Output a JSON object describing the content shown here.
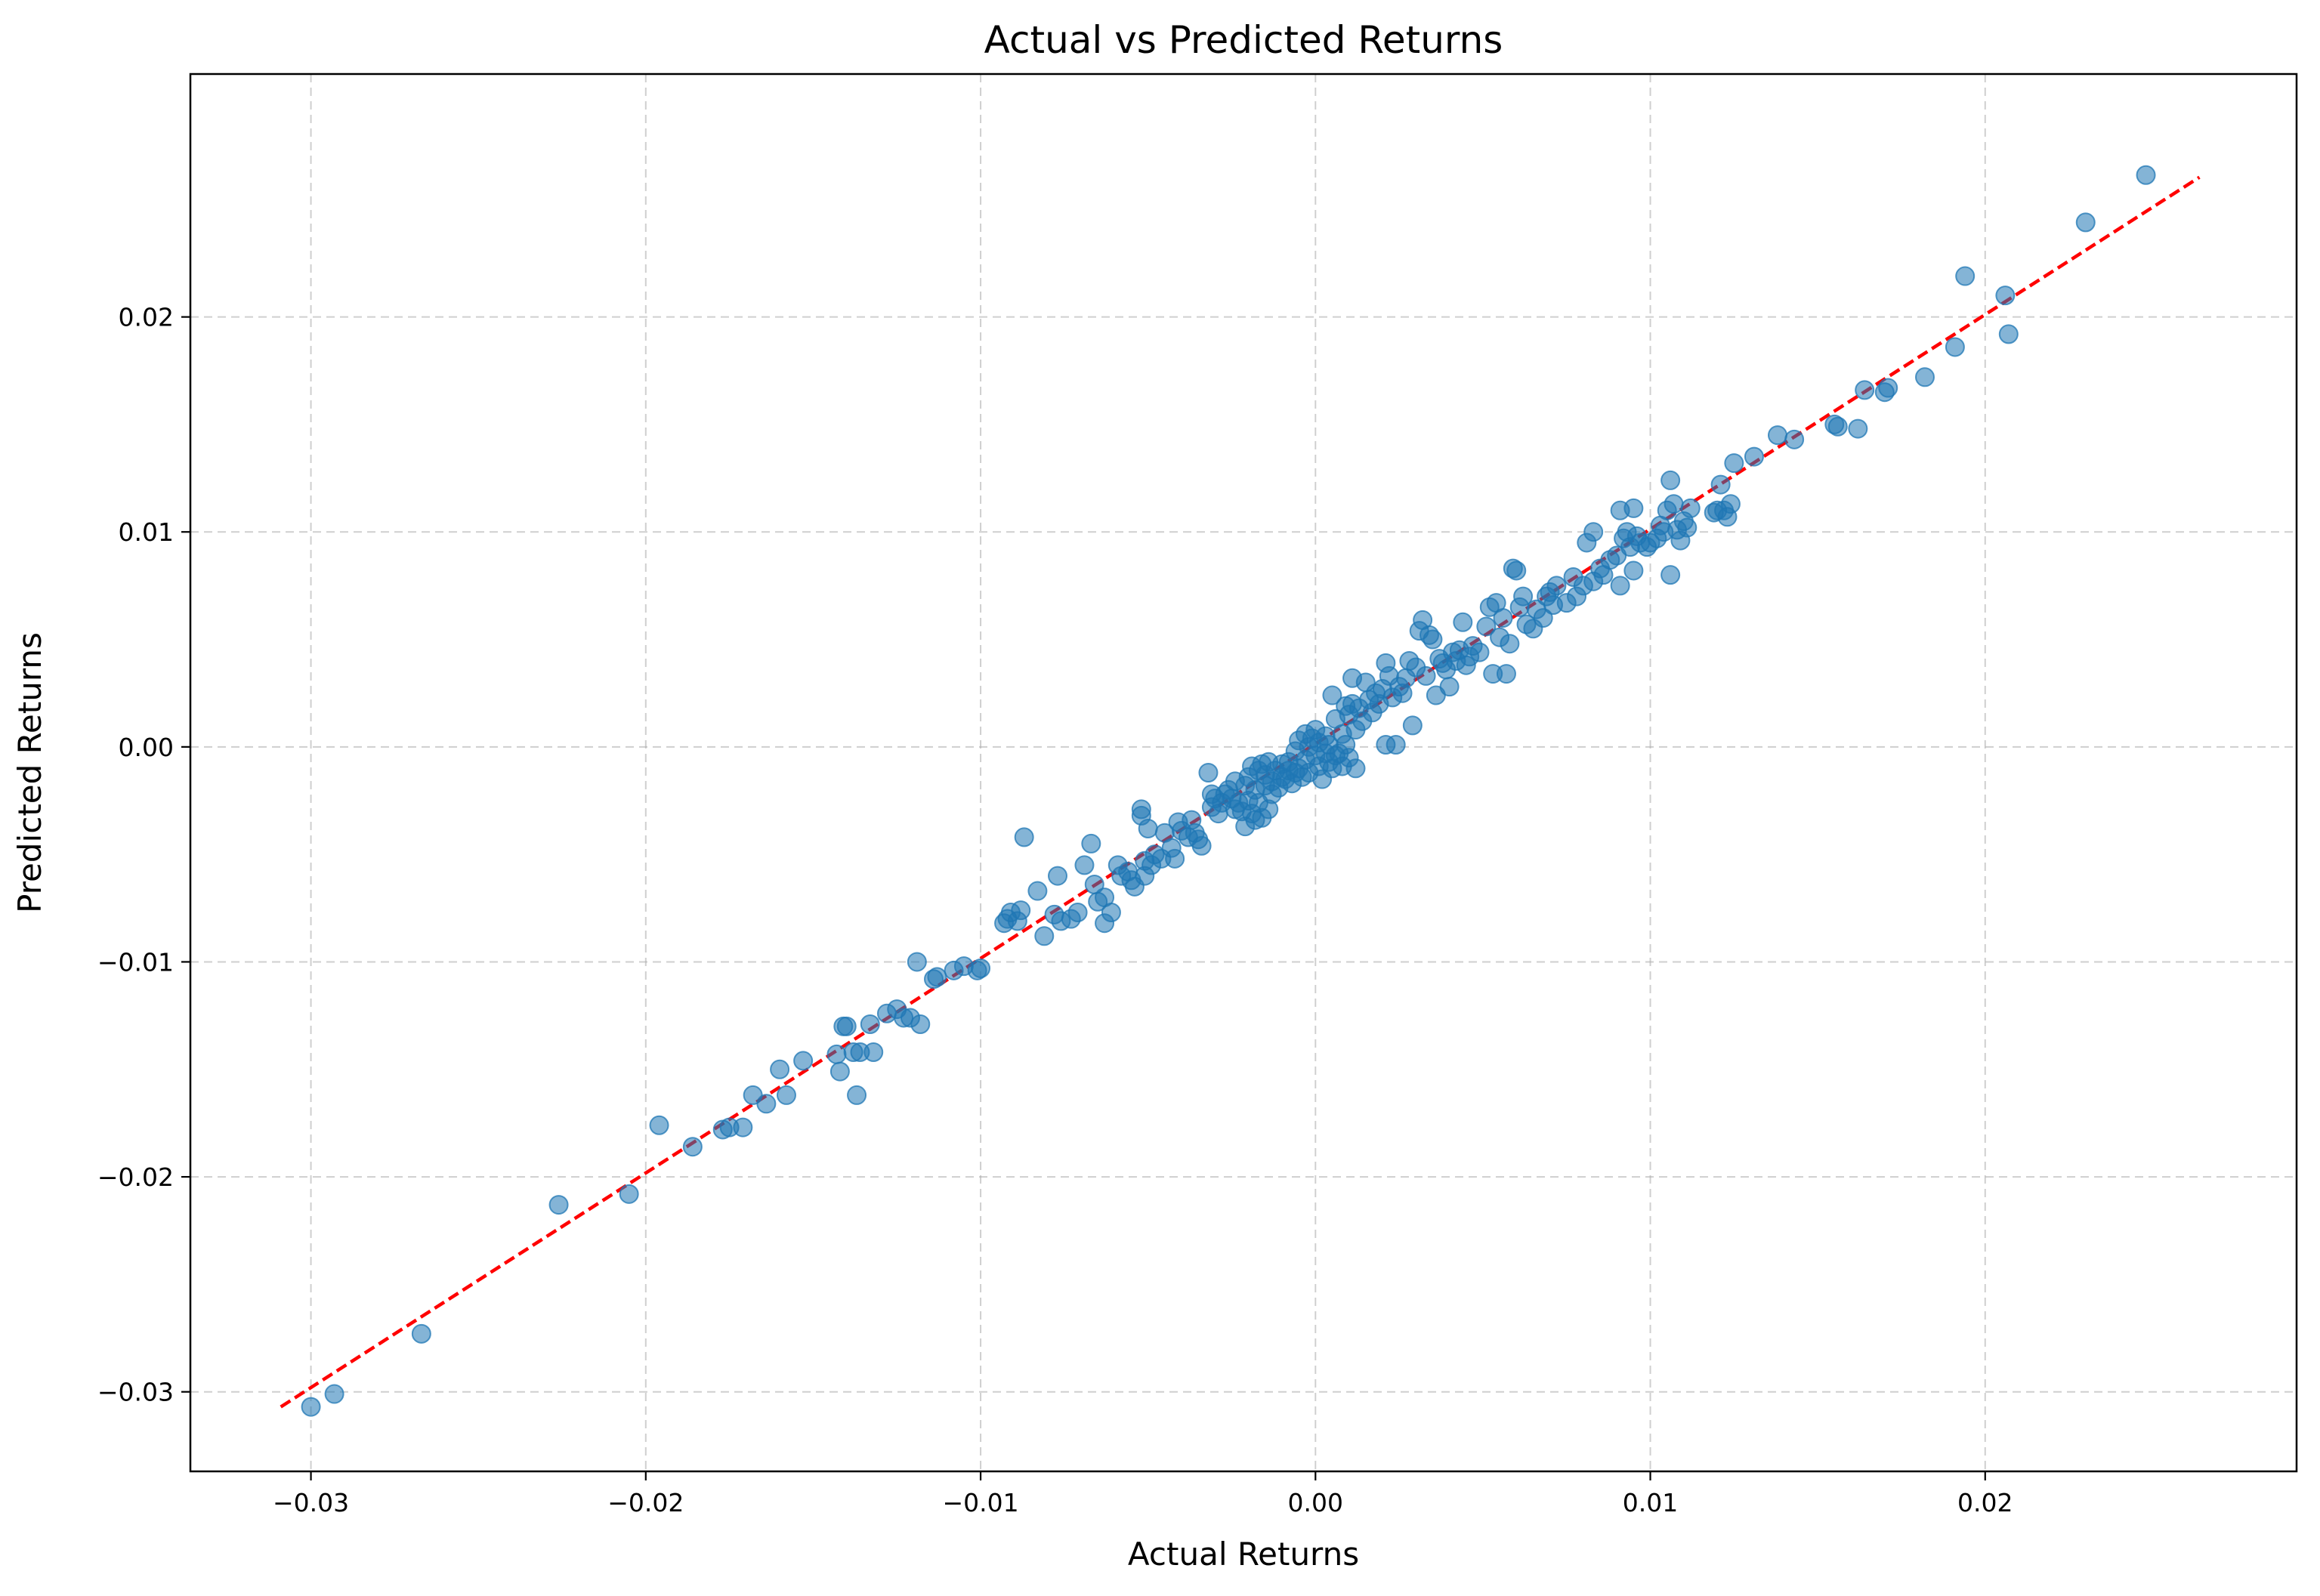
{
  "chart_data": {
    "type": "scatter",
    "title": "Actual vs Predicted Returns",
    "xlabel": "Actual Returns",
    "ylabel": "Predicted Returns",
    "xlim": [
      -0.0336,
      0.0293
    ],
    "ylim": [
      -0.0337,
      0.0313
    ],
    "xticks": [
      -0.03,
      -0.02,
      -0.01,
      0.0,
      0.01,
      0.02
    ],
    "yticks": [
      -0.03,
      -0.02,
      -0.01,
      0.0,
      0.01,
      0.02
    ],
    "xtick_labels": [
      "−0.03",
      "−0.02",
      "−0.01",
      "0.00",
      "0.01",
      "0.02"
    ],
    "ytick_labels": [
      "−0.03",
      "−0.02",
      "−0.01",
      "0.00",
      "0.01",
      "0.02"
    ],
    "grid": true,
    "colors": {
      "points": "#1f77b4",
      "reference_line": "#ff0000"
    },
    "reference_line": {
      "style": "dashed",
      "x": [
        -0.0309,
        0.0264
      ],
      "y": [
        -0.0307,
        0.0265
      ]
    },
    "points": [
      [
        -0.03,
        -0.0307
      ],
      [
        -0.0293,
        -0.0301
      ],
      [
        -0.0267,
        -0.0273
      ],
      [
        -0.0226,
        -0.0213
      ],
      [
        -0.0205,
        -0.0208
      ],
      [
        -0.0196,
        -0.0176
      ],
      [
        -0.0186,
        -0.0186
      ],
      [
        -0.0177,
        -0.0178
      ],
      [
        -0.0175,
        -0.0177
      ],
      [
        -0.0171,
        -0.0177
      ],
      [
        -0.0168,
        -0.0162
      ],
      [
        -0.0164,
        -0.0166
      ],
      [
        -0.016,
        -0.015
      ],
      [
        -0.0158,
        -0.0162
      ],
      [
        -0.0153,
        -0.0146
      ],
      [
        -0.0143,
        -0.0143
      ],
      [
        -0.0142,
        -0.0151
      ],
      [
        -0.0141,
        -0.013
      ],
      [
        -0.014,
        -0.013
      ],
      [
        -0.0138,
        -0.0142
      ],
      [
        -0.0137,
        -0.0162
      ],
      [
        -0.0136,
        -0.0142
      ],
      [
        -0.0133,
        -0.0129
      ],
      [
        -0.0132,
        -0.0142
      ],
      [
        -0.0128,
        -0.0124
      ],
      [
        -0.0125,
        -0.0122
      ],
      [
        -0.0123,
        -0.0126
      ],
      [
        -0.0121,
        -0.0126
      ],
      [
        -0.0119,
        -0.01
      ],
      [
        -0.0118,
        -0.0129
      ],
      [
        -0.0114,
        -0.0108
      ],
      [
        -0.0113,
        -0.0107
      ],
      [
        -0.0108,
        -0.0104
      ],
      [
        -0.0105,
        -0.0102
      ],
      [
        -0.0101,
        -0.0104
      ],
      [
        -0.01,
        -0.0103
      ],
      [
        -0.0093,
        -0.0082
      ],
      [
        -0.0092,
        -0.008
      ],
      [
        -0.0091,
        -0.0077
      ],
      [
        -0.0089,
        -0.0081
      ],
      [
        -0.0088,
        -0.0076
      ],
      [
        -0.0087,
        -0.0042
      ],
      [
        -0.0083,
        -0.0067
      ],
      [
        -0.0081,
        -0.0088
      ],
      [
        -0.0078,
        -0.0078
      ],
      [
        -0.0077,
        -0.006
      ],
      [
        -0.0076,
        -0.0081
      ],
      [
        -0.0073,
        -0.008
      ],
      [
        -0.0071,
        -0.0077
      ],
      [
        -0.0069,
        -0.0055
      ],
      [
        -0.0067,
        -0.0045
      ],
      [
        -0.0066,
        -0.0064
      ],
      [
        -0.0065,
        -0.0072
      ],
      [
        -0.0063,
        -0.007
      ],
      [
        -0.0063,
        -0.0082
      ],
      [
        -0.0061,
        -0.0077
      ],
      [
        -0.0059,
        -0.0055
      ],
      [
        -0.0058,
        -0.006
      ],
      [
        -0.0056,
        -0.0058
      ],
      [
        -0.0055,
        -0.0062
      ],
      [
        -0.0054,
        -0.0065
      ],
      [
        -0.0052,
        -0.0029
      ],
      [
        -0.0052,
        -0.0032
      ],
      [
        -0.0051,
        -0.0053
      ],
      [
        -0.0051,
        -0.006
      ],
      [
        -0.005,
        -0.0038
      ],
      [
        -0.0049,
        -0.0055
      ],
      [
        -0.0048,
        -0.005
      ],
      [
        -0.0046,
        -0.0052
      ],
      [
        -0.0045,
        -0.004
      ],
      [
        -0.0043,
        -0.0047
      ],
      [
        -0.0042,
        -0.0052
      ],
      [
        -0.0041,
        -0.0035
      ],
      [
        -0.004,
        -0.0039
      ],
      [
        -0.0038,
        -0.0042
      ],
      [
        -0.0037,
        -0.0034
      ],
      [
        -0.0036,
        -0.004
      ],
      [
        -0.0035,
        -0.0043
      ],
      [
        -0.0034,
        -0.0046
      ],
      [
        -0.0032,
        -0.0012
      ],
      [
        -0.0031,
        -0.0022
      ],
      [
        -0.0031,
        -0.0028
      ],
      [
        -0.003,
        -0.0024
      ],
      [
        -0.0029,
        -0.0031
      ],
      [
        -0.0028,
        -0.0026
      ],
      [
        -0.0027,
        -0.0022
      ],
      [
        -0.0026,
        -0.002
      ],
      [
        -0.0025,
        -0.0024
      ],
      [
        -0.0024,
        -0.0029
      ],
      [
        -0.0024,
        -0.0016
      ],
      [
        -0.0023,
        -0.0026
      ],
      [
        -0.0022,
        -0.003
      ],
      [
        -0.0021,
        -0.0037
      ],
      [
        -0.0021,
        -0.0018
      ],
      [
        -0.002,
        -0.0025
      ],
      [
        -0.002,
        -0.0014
      ],
      [
        -0.0019,
        -0.0009
      ],
      [
        -0.0019,
        -0.0031
      ],
      [
        -0.0018,
        -0.002
      ],
      [
        -0.0018,
        -0.0034
      ],
      [
        -0.0017,
        -0.0026
      ],
      [
        -0.0017,
        -0.0011
      ],
      [
        -0.0016,
        -0.0008
      ],
      [
        -0.0016,
        -0.0033
      ],
      [
        -0.0015,
        -0.0018
      ],
      [
        -0.0015,
        -0.0013
      ],
      [
        -0.0014,
        -0.0029
      ],
      [
        -0.0014,
        -0.0007
      ],
      [
        -0.0013,
        -0.0022
      ],
      [
        -0.0013,
        -0.0016
      ],
      [
        -0.0012,
        -0.0011
      ],
      [
        -0.0011,
        -0.0019
      ],
      [
        -0.001,
        -0.0008
      ],
      [
        -0.001,
        -0.0014
      ],
      [
        -0.0009,
        -0.0015
      ],
      [
        -0.0008,
        -0.0007
      ],
      [
        -0.0008,
        -0.0011
      ],
      [
        -0.0007,
        -0.0017
      ],
      [
        -0.0006,
        -0.0012
      ],
      [
        -0.0006,
        -0.0002
      ],
      [
        -0.0005,
        -0.001
      ],
      [
        -0.0005,
        0.0003
      ],
      [
        -0.0004,
        -0.0014
      ],
      [
        -0.0003,
        0.0006
      ],
      [
        -0.0003,
        -0.0006
      ],
      [
        -0.0002,
        0.0
      ],
      [
        -0.0002,
        -0.0012
      ],
      [
        -0.0001,
        0.0004
      ],
      [
        0.0,
        -0.0004
      ],
      [
        0.0,
        0.0008
      ],
      [
        0.0001,
        -0.0009
      ],
      [
        0.0001,
        0.0002
      ],
      [
        0.0002,
        -0.0015
      ],
      [
        0.0003,
        0.0005
      ],
      [
        0.0003,
        -0.0003
      ],
      [
        0.0004,
        0.0001
      ],
      [
        0.0004,
        -0.0007
      ],
      [
        0.0005,
        0.0024
      ],
      [
        0.0005,
        -0.001
      ],
      [
        0.0006,
        0.0013
      ],
      [
        0.0006,
        -0.0004
      ],
      [
        0.0007,
        -0.0003
      ],
      [
        0.0008,
        0.0006
      ],
      [
        0.0008,
        -0.0009
      ],
      [
        0.0009,
        0.0019
      ],
      [
        0.0009,
        0.0001
      ],
      [
        0.001,
        0.0015
      ],
      [
        0.001,
        -0.0005
      ],
      [
        0.0011,
        0.002
      ],
      [
        0.0011,
        0.0032
      ],
      [
        0.0012,
        0.0008
      ],
      [
        0.0012,
        -0.001
      ],
      [
        0.0013,
        0.0018
      ],
      [
        0.0014,
        0.0012
      ],
      [
        0.0015,
        0.003
      ],
      [
        0.0016,
        0.0022
      ],
      [
        0.0017,
        0.0016
      ],
      [
        0.0018,
        0.0025
      ],
      [
        0.0019,
        0.002
      ],
      [
        0.002,
        0.0027
      ],
      [
        0.0021,
        0.0001
      ],
      [
        0.0021,
        0.0039
      ],
      [
        0.0022,
        0.0033
      ],
      [
        0.0023,
        0.0023
      ],
      [
        0.0024,
        0.0001
      ],
      [
        0.0025,
        0.0028
      ],
      [
        0.0026,
        0.0025
      ],
      [
        0.0027,
        0.0032
      ],
      [
        0.0028,
        0.004
      ],
      [
        0.0029,
        0.001
      ],
      [
        0.003,
        0.0037
      ],
      [
        0.0031,
        0.0054
      ],
      [
        0.0032,
        0.0059
      ],
      [
        0.0033,
        0.0033
      ],
      [
        0.0034,
        0.0052
      ],
      [
        0.0035,
        0.005
      ],
      [
        0.0036,
        0.0024
      ],
      [
        0.0037,
        0.0041
      ],
      [
        0.0038,
        0.0039
      ],
      [
        0.0039,
        0.0036
      ],
      [
        0.004,
        0.0028
      ],
      [
        0.0041,
        0.0044
      ],
      [
        0.0042,
        0.004
      ],
      [
        0.0043,
        0.0045
      ],
      [
        0.0044,
        0.0058
      ],
      [
        0.0045,
        0.0038
      ],
      [
        0.0046,
        0.0042
      ],
      [
        0.0047,
        0.0047
      ],
      [
        0.0049,
        0.0044
      ],
      [
        0.0051,
        0.0056
      ],
      [
        0.0052,
        0.0065
      ],
      [
        0.0053,
        0.0034
      ],
      [
        0.0054,
        0.0067
      ],
      [
        0.0055,
        0.0051
      ],
      [
        0.0056,
        0.006
      ],
      [
        0.0057,
        0.0034
      ],
      [
        0.0058,
        0.0048
      ],
      [
        0.0059,
        0.0083
      ],
      [
        0.006,
        0.0082
      ],
      [
        0.0061,
        0.0065
      ],
      [
        0.0062,
        0.007
      ],
      [
        0.0063,
        0.0057
      ],
      [
        0.0065,
        0.0055
      ],
      [
        0.0066,
        0.0064
      ],
      [
        0.0068,
        0.006
      ],
      [
        0.0069,
        0.007
      ],
      [
        0.007,
        0.0072
      ],
      [
        0.0071,
        0.0066
      ],
      [
        0.0072,
        0.0075
      ],
      [
        0.0075,
        0.0067
      ],
      [
        0.0077,
        0.0079
      ],
      [
        0.0078,
        0.007
      ],
      [
        0.008,
        0.0075
      ],
      [
        0.0081,
        0.0095
      ],
      [
        0.0083,
        0.01
      ],
      [
        0.0083,
        0.0077
      ],
      [
        0.0085,
        0.0083
      ],
      [
        0.0086,
        0.008
      ],
      [
        0.0088,
        0.0087
      ],
      [
        0.009,
        0.0089
      ],
      [
        0.0091,
        0.011
      ],
      [
        0.0091,
        0.0075
      ],
      [
        0.0092,
        0.0097
      ],
      [
        0.0093,
        0.01
      ],
      [
        0.0094,
        0.0093
      ],
      [
        0.0095,
        0.0111
      ],
      [
        0.0095,
        0.0082
      ],
      [
        0.0096,
        0.0098
      ],
      [
        0.0097,
        0.0095
      ],
      [
        0.0099,
        0.0093
      ],
      [
        0.01,
        0.0095
      ],
      [
        0.0102,
        0.0097
      ],
      [
        0.0103,
        0.0103
      ],
      [
        0.0104,
        0.01
      ],
      [
        0.0105,
        0.011
      ],
      [
        0.0106,
        0.0124
      ],
      [
        0.0106,
        0.008
      ],
      [
        0.0107,
        0.0113
      ],
      [
        0.0108,
        0.0101
      ],
      [
        0.0109,
        0.0096
      ],
      [
        0.011,
        0.0105
      ],
      [
        0.0111,
        0.0102
      ],
      [
        0.0112,
        0.0111
      ],
      [
        0.0119,
        0.0109
      ],
      [
        0.012,
        0.011
      ],
      [
        0.0121,
        0.0122
      ],
      [
        0.0122,
        0.011
      ],
      [
        0.0123,
        0.0107
      ],
      [
        0.0124,
        0.0113
      ],
      [
        0.0125,
        0.0132
      ],
      [
        0.0131,
        0.0135
      ],
      [
        0.0138,
        0.0145
      ],
      [
        0.0143,
        0.0143
      ],
      [
        0.0155,
        0.015
      ],
      [
        0.0156,
        0.0149
      ],
      [
        0.0162,
        0.0148
      ],
      [
        0.0164,
        0.0166
      ],
      [
        0.017,
        0.0165
      ],
      [
        0.0171,
        0.0167
      ],
      [
        0.0182,
        0.0172
      ],
      [
        0.0191,
        0.0186
      ],
      [
        0.0194,
        0.0219
      ],
      [
        0.0206,
        0.021
      ],
      [
        0.0207,
        0.0192
      ],
      [
        0.023,
        0.0244
      ],
      [
        0.0248,
        0.0266
      ]
    ]
  }
}
